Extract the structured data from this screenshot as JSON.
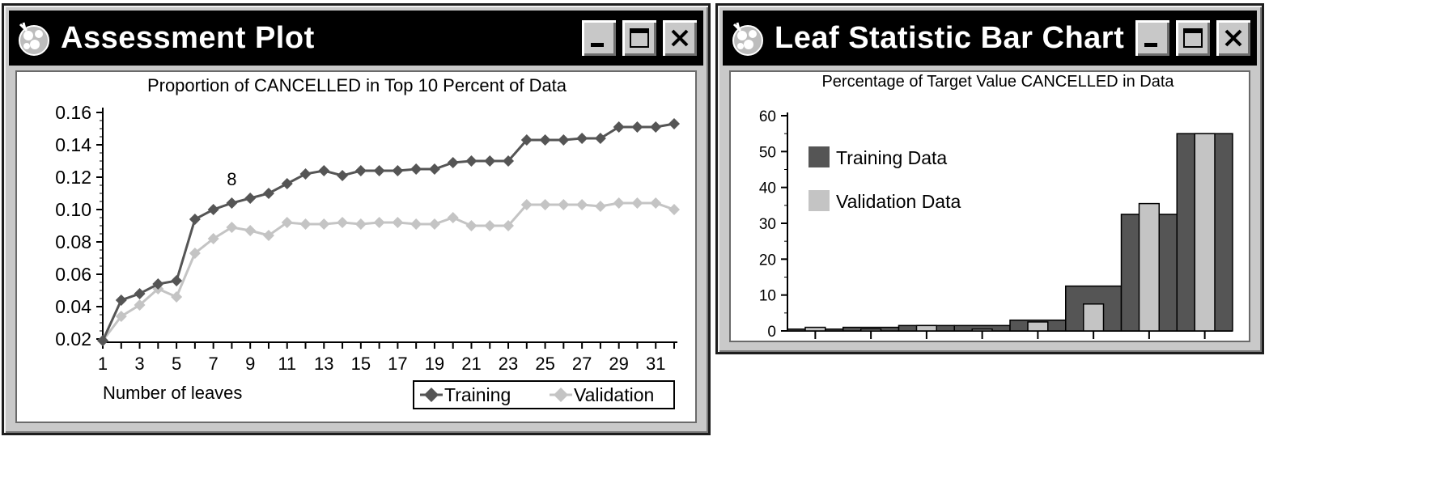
{
  "windows": {
    "assessment": {
      "title": "Assessment Plot",
      "controls": {
        "minimize": "minimize",
        "maximize": "maximize",
        "close": "close"
      }
    },
    "leaf": {
      "title": "Leaf Statistic Bar Chart",
      "controls": {
        "minimize": "minimize",
        "maximize": "maximize",
        "close": "close"
      }
    }
  },
  "chart_data": [
    {
      "type": "line",
      "title": "Proportion of CANCELLED in Top 10 Percent of Data",
      "xlabel": "Number of leaves",
      "ylabel": "",
      "ylim": [
        0.02,
        0.16
      ],
      "yticks": [
        "0.02",
        "0.04",
        "0.06",
        "0.08",
        "0.10",
        "0.12",
        "0.14",
        "0.16"
      ],
      "xlim": [
        1,
        32
      ],
      "xticks": [
        "1",
        "3",
        "5",
        "7",
        "9",
        "11",
        "13",
        "15",
        "17",
        "19",
        "21",
        "23",
        "25",
        "27",
        "29",
        "31"
      ],
      "x": [
        1,
        2,
        3,
        4,
        5,
        6,
        7,
        8,
        9,
        10,
        11,
        12,
        13,
        14,
        15,
        16,
        17,
        18,
        19,
        20,
        21,
        22,
        23,
        24,
        25,
        26,
        27,
        28,
        29,
        30,
        31,
        32
      ],
      "series": [
        {
          "name": "Training",
          "color": "#555555",
          "values": [
            0.019,
            0.044,
            0.048,
            0.054,
            0.056,
            0.094,
            0.1,
            0.104,
            0.107,
            0.11,
            0.116,
            0.122,
            0.124,
            0.121,
            0.124,
            0.124,
            0.124,
            0.125,
            0.125,
            0.129,
            0.13,
            0.13,
            0.13,
            0.143,
            0.143,
            0.143,
            0.144,
            0.144,
            0.151,
            0.151,
            0.151,
            0.153
          ]
        },
        {
          "name": "Validation",
          "color": "#c4c4c4",
          "values": [
            0.019,
            0.034,
            0.041,
            0.051,
            0.046,
            0.073,
            0.082,
            0.089,
            0.087,
            0.084,
            0.092,
            0.091,
            0.091,
            0.092,
            0.091,
            0.092,
            0.092,
            0.091,
            0.091,
            0.095,
            0.09,
            0.09,
            0.09,
            0.103,
            0.103,
            0.103,
            0.103,
            0.102,
            0.104,
            0.104,
            0.104,
            0.1
          ]
        }
      ],
      "annotations": [
        {
          "x": 8,
          "y": 0.104,
          "text": "8"
        }
      ],
      "legend": "bottom-right",
      "grid": false
    },
    {
      "type": "bar",
      "title": "Percentage of Target Value CANCELLED in Data",
      "xlabel": "",
      "ylabel": "",
      "ylim": [
        0,
        60
      ],
      "yticks": [
        "0",
        "10",
        "20",
        "30",
        "40",
        "50",
        "60"
      ],
      "categories": [
        "",
        "",
        "",
        "",
        "",
        "",
        "",
        ""
      ],
      "series": [
        {
          "name": "Training Data",
          "color": "#555555",
          "values": [
            0.5,
            1.0,
            1.5,
            1.5,
            3.0,
            12.5,
            32.5,
            55.0
          ]
        },
        {
          "name": "Validation Data",
          "color": "#c4c4c4",
          "values": [
            1.0,
            0.5,
            1.5,
            0.5,
            2.5,
            7.5,
            35.5,
            55.0
          ]
        }
      ],
      "legend": "top-left",
      "grid": false
    }
  ]
}
